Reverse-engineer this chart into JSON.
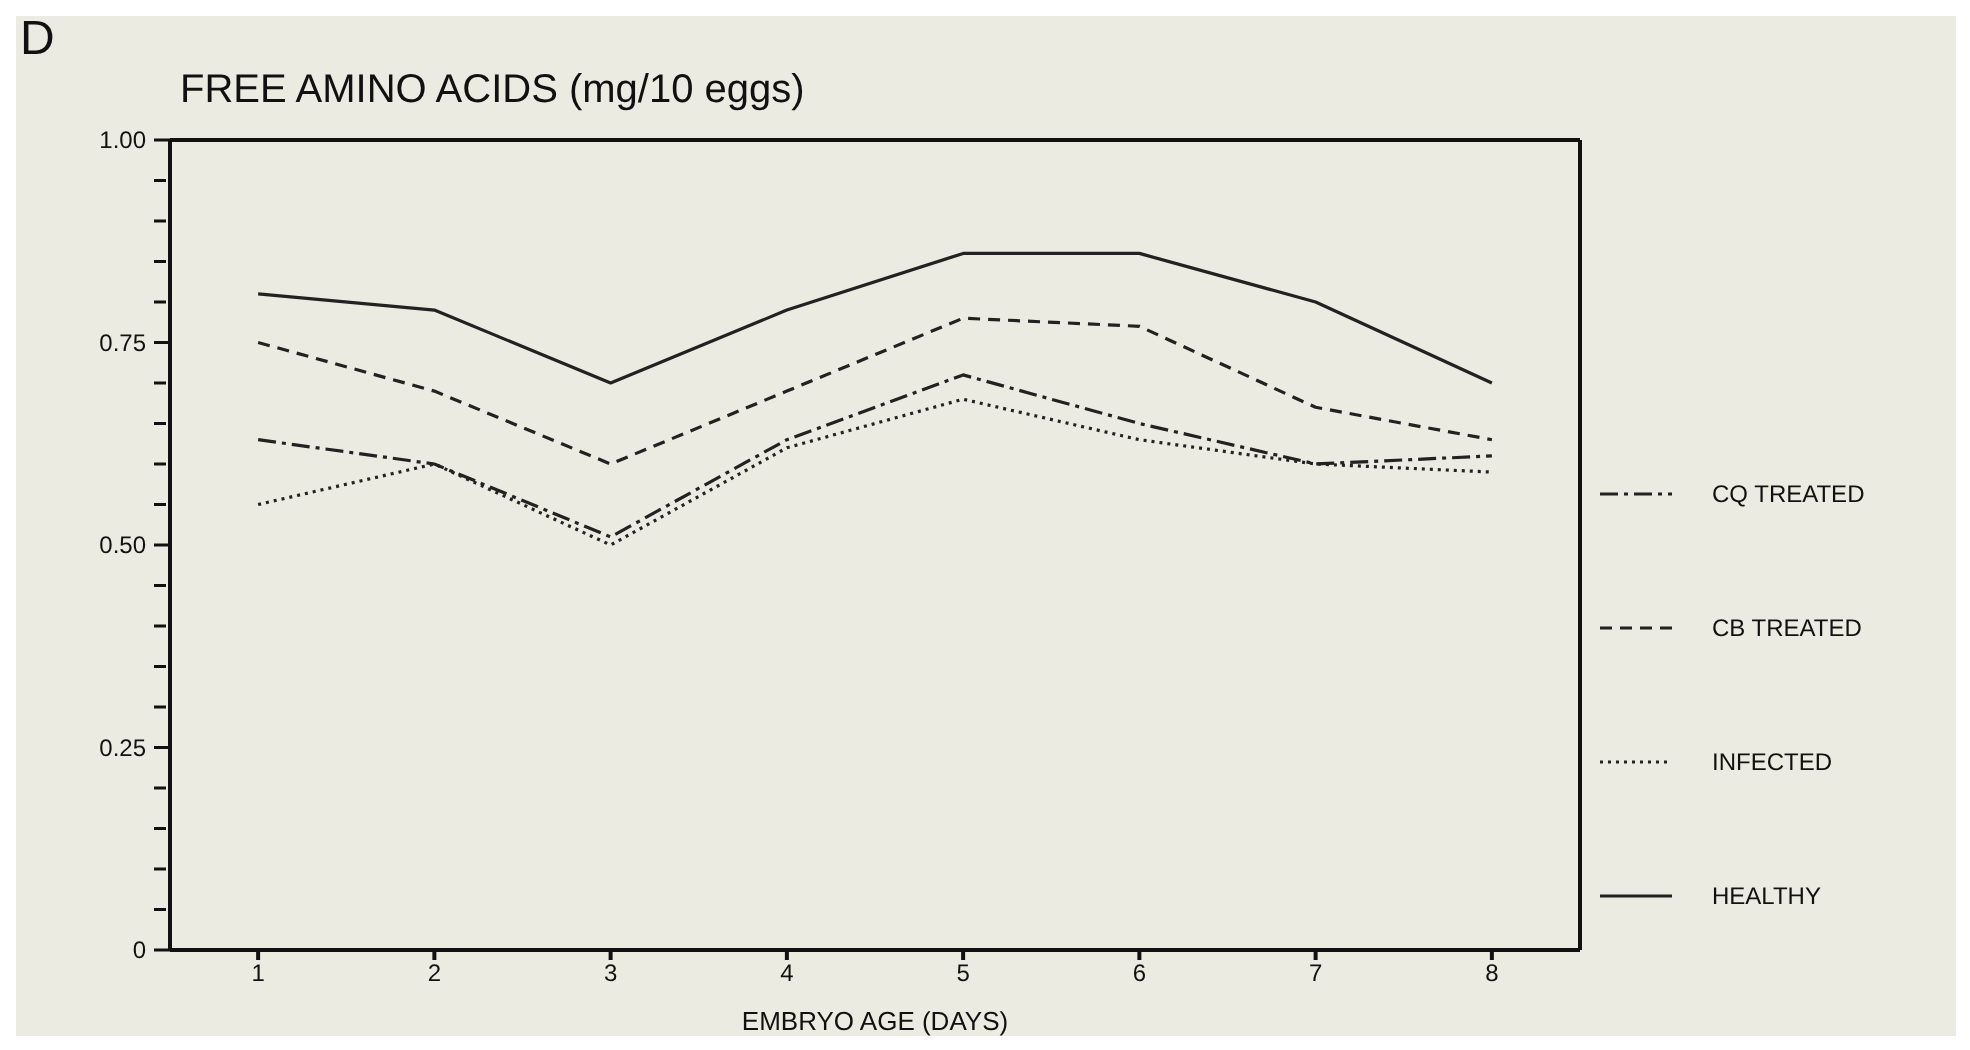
{
  "chart_data": {
    "type": "line",
    "title": "FREE AMINO ACIDS (mg/10 eggs)",
    "xlabel": "EMBRYO AGE (DAYS)",
    "annotations": [
      "D"
    ],
    "x": [
      1,
      2,
      3,
      4,
      5,
      6,
      7,
      8
    ],
    "xlim": [
      0.5,
      8.5
    ],
    "xticks": [
      1,
      2,
      3,
      4,
      5,
      6,
      7,
      8
    ],
    "ylim": [
      0,
      1
    ],
    "yticks": [
      {
        "value": 0,
        "label": "0"
      },
      {
        "value": 0.05,
        "label": null
      },
      {
        "value": 0.1,
        "label": null
      },
      {
        "value": 0.15,
        "label": null
      },
      {
        "value": 0.2,
        "label": null
      },
      {
        "value": 0.25,
        "label": "0.25"
      },
      {
        "value": 0.3,
        "label": null
      },
      {
        "value": 0.35,
        "label": null
      },
      {
        "value": 0.4,
        "label": null
      },
      {
        "value": 0.45,
        "label": null
      },
      {
        "value": 0.5,
        "label": "0.50"
      },
      {
        "value": 0.55,
        "label": null
      },
      {
        "value": 0.6,
        "label": null
      },
      {
        "value": 0.65,
        "label": null
      },
      {
        "value": 0.7,
        "label": null
      },
      {
        "value": 0.75,
        "label": "0.75"
      },
      {
        "value": 0.8,
        "label": null
      },
      {
        "value": 0.85,
        "label": null
      },
      {
        "value": 0.9,
        "label": null
      },
      {
        "value": 0.95,
        "label": null
      },
      {
        "value": 1,
        "label": "1.00"
      }
    ],
    "legend": "right",
    "grid": false,
    "series": [
      {
        "name": "CQ TREATED",
        "color": "#222222",
        "line_style": "dashdot",
        "values": [
          0.63,
          0.6,
          0.51,
          0.63,
          0.71,
          0.65,
          0.6,
          0.61
        ]
      },
      {
        "name": "CB TREATED",
        "color": "#222222",
        "line_style": "dashed",
        "values": [
          0.75,
          0.69,
          0.6,
          0.69,
          0.78,
          0.77,
          0.67,
          0.63
        ]
      },
      {
        "name": "INFECTED",
        "color": "#222222",
        "line_style": "dotted",
        "values": [
          0.55,
          0.6,
          0.5,
          0.62,
          0.68,
          0.63,
          0.6,
          0.59
        ]
      },
      {
        "name": "HEALTHY",
        "color": "#222222",
        "line_style": "solid",
        "values": [
          0.81,
          0.79,
          0.7,
          0.79,
          0.86,
          0.86,
          0.8,
          0.7
        ]
      }
    ]
  }
}
